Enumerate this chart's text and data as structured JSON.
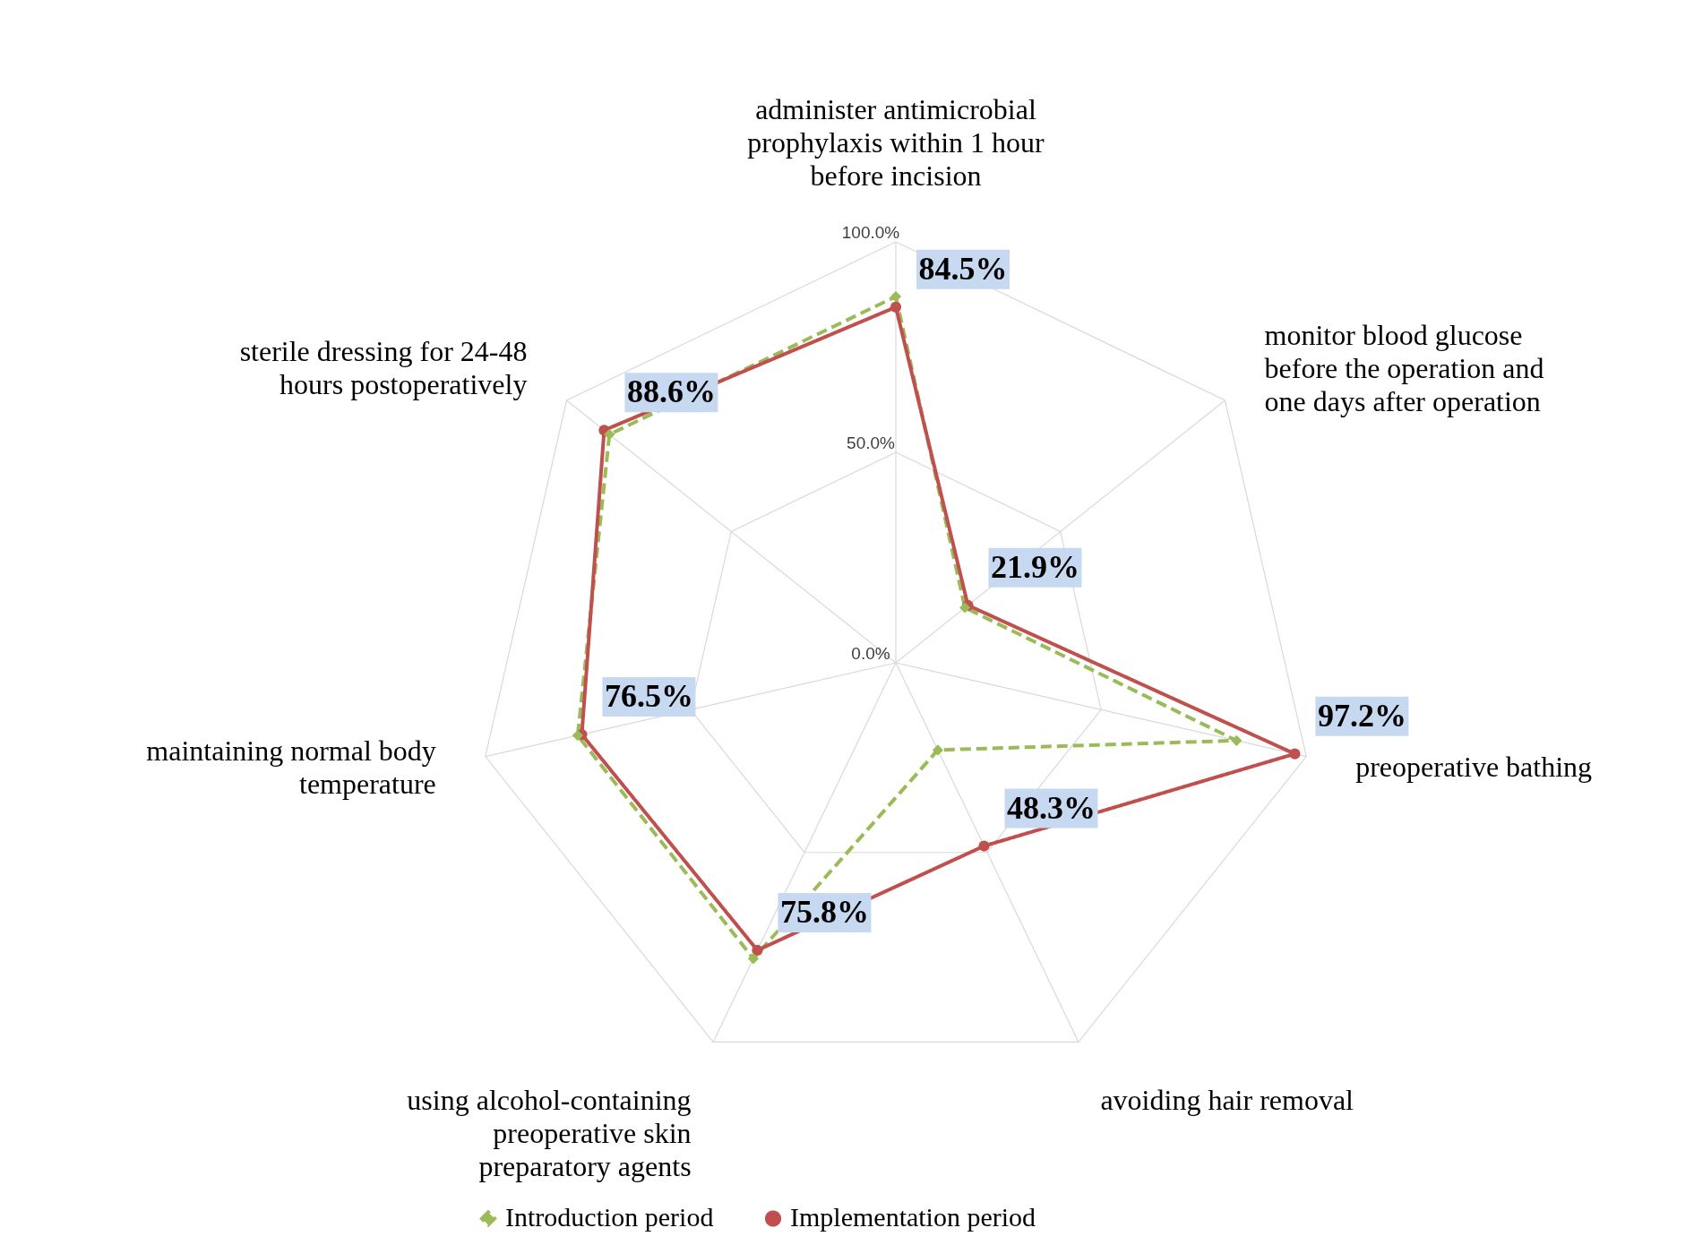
{
  "chart_data": {
    "type": "radar",
    "categories": [
      "administer antimicrobial prophylaxis within 1 hour before incision",
      "monitor blood glucose before the operation and one days after operation",
      "preoperative bathing",
      "avoiding hair removal",
      "using alcohol-containing preoperative skin preparatory agents",
      "maintaining normal body temperature",
      "sterile dressing for 24-48 hours postoperatively"
    ],
    "series": [
      {
        "name": "Introduction period",
        "color": "#9bbb59",
        "line_style": "dashed",
        "marker": "diamond",
        "values": [
          87,
          21,
          83,
          23,
          78,
          77.5,
          87
        ]
      },
      {
        "name": "Implementation period",
        "color": "#c0504d",
        "line_style": "solid",
        "marker": "circle",
        "values": [
          84.5,
          21.9,
          97.2,
          48.3,
          75.8,
          76.5,
          88.6
        ],
        "value_labels": [
          "84.5%",
          "21.9%",
          "97.2%",
          "48.3%",
          "75.8%",
          "76.5%",
          "88.6%"
        ]
      }
    ],
    "ylim": [
      0,
      100
    ],
    "yticks": [
      {
        "value": 0,
        "label": "0.0%"
      },
      {
        "value": 50,
        "label": "50.0%"
      },
      {
        "value": 100,
        "label": "100.0%"
      }
    ],
    "grid": true,
    "legend": "bottom"
  }
}
